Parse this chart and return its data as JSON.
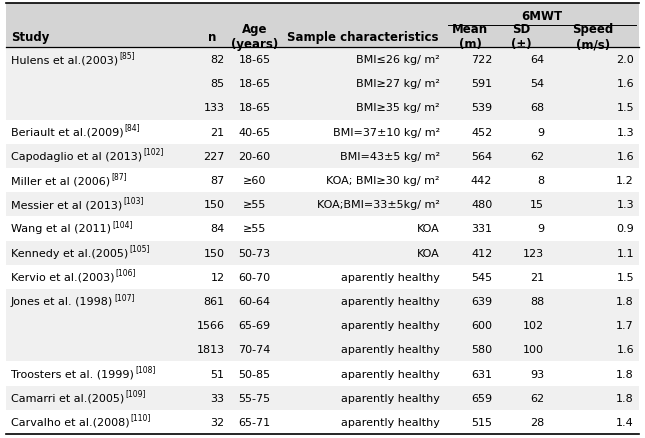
{
  "columns": [
    "Study",
    "n",
    "Age\n(years)",
    "Sample characteristics",
    "Mean\n(m)",
    "SD\n(±)",
    "Speed\n(m/s)"
  ],
  "col_header_6mwt": "6MWT",
  "rows": [
    [
      "Hulens et al.(2003)",
      "85",
      "82",
      "18-65",
      "BMI≤26 kg/ m²",
      "722",
      "64",
      "2.0"
    ],
    [
      "",
      "",
      "85",
      "18-65",
      "BMI≥27 kg/ m²",
      "591",
      "54",
      "1.6"
    ],
    [
      "",
      "",
      "133",
      "18-65",
      "BMI≥35 kg/ m²",
      "539",
      "68",
      "1.5"
    ],
    [
      "Beriault et al.(2009)",
      "84",
      "21",
      "40-65",
      "BMI=37±10 kg/ m²",
      "452",
      "9",
      "1.3"
    ],
    [
      "Capodaglio et al (2013)",
      "102",
      "227",
      "20-60",
      "BMI=43±5 kg/ m²",
      "564",
      "62",
      "1.6"
    ],
    [
      "Miller et al (2006)",
      "87",
      "87",
      "≥60",
      "KOA; BMI≥30 kg/ m²",
      "442",
      "8",
      "1.2"
    ],
    [
      "Messier et al (2013)",
      "103",
      "150",
      "≥55",
      "KOA;BMI=33±5kg/ m²",
      "480",
      "15",
      "1.3"
    ],
    [
      "Wang et al (2011)",
      "104",
      "84",
      "≥55",
      "KOA",
      "331",
      "9",
      "0.9"
    ],
    [
      "Kennedy et al.(2005)",
      "105",
      "150",
      "50-73",
      "KOA",
      "412",
      "123",
      "1.1"
    ],
    [
      "Kervio et al.(2003)",
      "106",
      "12",
      "60-70",
      "aparently healthy",
      "545",
      "21",
      "1.5"
    ],
    [
      "Jones et al. (1998)",
      "107",
      "861",
      "60-64",
      "aparently healthy",
      "639",
      "88",
      "1.8"
    ],
    [
      "",
      "",
      "1566",
      "65-69",
      "aparently healthy",
      "600",
      "102",
      "1.7"
    ],
    [
      "",
      "",
      "1813",
      "70-74",
      "aparently healthy",
      "580",
      "100",
      "1.6"
    ],
    [
      "Troosters et al. (1999)",
      "108",
      "51",
      "50-85",
      "aparently healthy",
      "631",
      "93",
      "1.8"
    ],
    [
      "Camarri et al.(2005)",
      "109",
      "33",
      "55-75",
      "aparently healthy",
      "659",
      "62",
      "1.8"
    ],
    [
      "Carvalho et al.(2008)",
      "110",
      "32",
      "65-71",
      "aparently healthy",
      "515",
      "28",
      "1.4"
    ]
  ],
  "group_colors": [
    "#f0f0f0",
    "#f0f0f0",
    "#f0f0f0",
    "#ffffff",
    "#f0f0f0",
    "#ffffff",
    "#f0f0f0",
    "#ffffff",
    "#f0f0f0",
    "#ffffff",
    "#f0f0f0",
    "#f0f0f0",
    "#f0f0f0",
    "#ffffff",
    "#f0f0f0",
    "#ffffff"
  ],
  "header_bg": "#d4d4d4",
  "font_size": 8.0,
  "header_font_size": 8.5,
  "sup_font_size": 5.5
}
